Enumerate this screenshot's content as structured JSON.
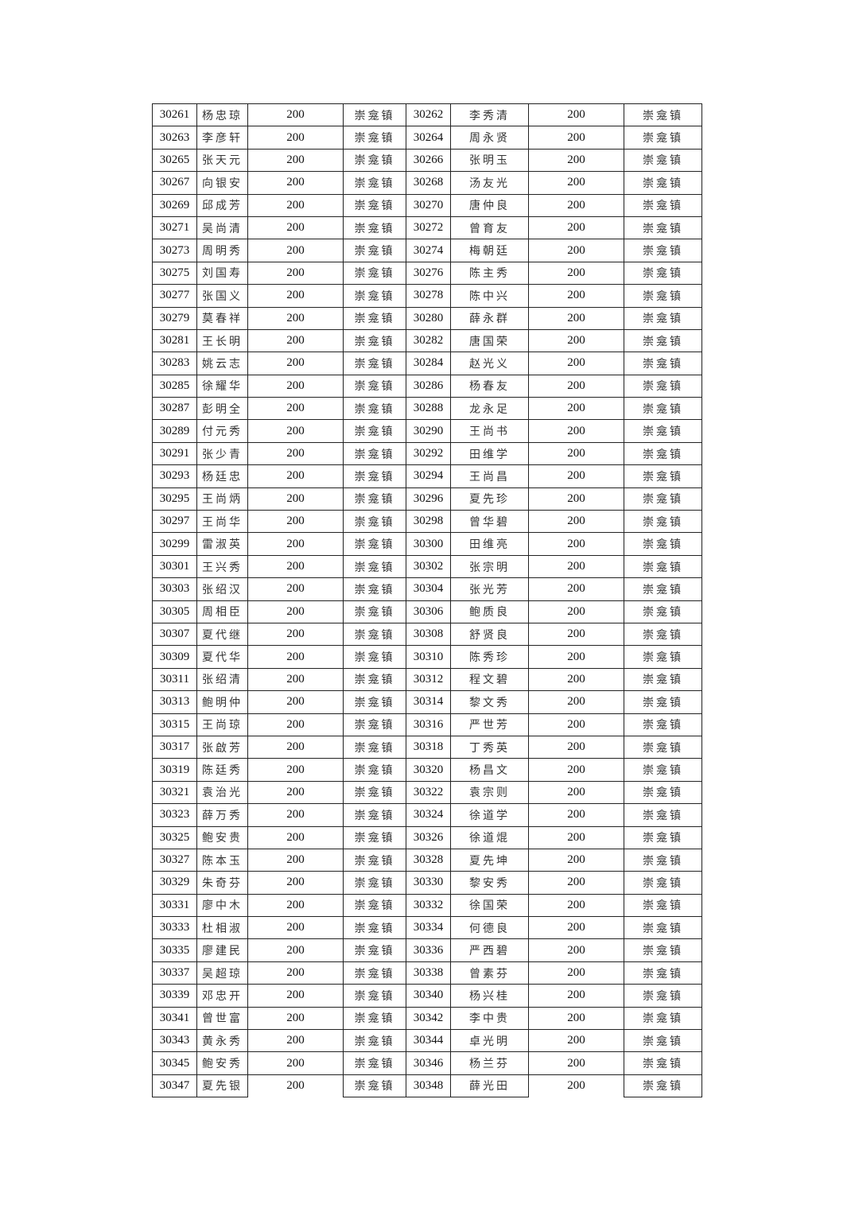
{
  "amount": "200",
  "town": "崇龛镇",
  "rows": [
    [
      "30261",
      "杨忠琼",
      "30262",
      "李秀清"
    ],
    [
      "30263",
      "李彦轩",
      "30264",
      "周永贤"
    ],
    [
      "30265",
      "张天元",
      "30266",
      "张明玉"
    ],
    [
      "30267",
      "向银安",
      "30268",
      "汤友光"
    ],
    [
      "30269",
      "邱成芳",
      "30270",
      "唐仲良"
    ],
    [
      "30271",
      "吴尚清",
      "30272",
      "曾育友"
    ],
    [
      "30273",
      "周明秀",
      "30274",
      "梅朝廷"
    ],
    [
      "30275",
      "刘国寿",
      "30276",
      "陈主秀"
    ],
    [
      "30277",
      "张国义",
      "30278",
      "陈中兴"
    ],
    [
      "30279",
      "莫春祥",
      "30280",
      "薛永群"
    ],
    [
      "30281",
      "王长明",
      "30282",
      "唐国荣"
    ],
    [
      "30283",
      "姚云志",
      "30284",
      "赵光义"
    ],
    [
      "30285",
      "徐耀华",
      "30286",
      "杨春友"
    ],
    [
      "30287",
      "彭明全",
      "30288",
      "龙永足"
    ],
    [
      "30289",
      "付元秀",
      "30290",
      "王尚书"
    ],
    [
      "30291",
      "张少青",
      "30292",
      "田维学"
    ],
    [
      "30293",
      "杨廷忠",
      "30294",
      "王尚昌"
    ],
    [
      "30295",
      "王尚炳",
      "30296",
      "夏先珍"
    ],
    [
      "30297",
      "王尚华",
      "30298",
      "曾华碧"
    ],
    [
      "30299",
      "雷淑英",
      "30300",
      "田维亮"
    ],
    [
      "30301",
      "王兴秀",
      "30302",
      "张宗明"
    ],
    [
      "30303",
      "张绍汉",
      "30304",
      "张光芳"
    ],
    [
      "30305",
      "周相臣",
      "30306",
      "鲍质良"
    ],
    [
      "30307",
      "夏代继",
      "30308",
      "舒贤良"
    ],
    [
      "30309",
      "夏代华",
      "30310",
      "陈秀珍"
    ],
    [
      "30311",
      "张绍清",
      "30312",
      "程文碧"
    ],
    [
      "30313",
      "鲍明仲",
      "30314",
      "黎文秀"
    ],
    [
      "30315",
      "王尚琼",
      "30316",
      "严世芳"
    ],
    [
      "30317",
      "张啟芳",
      "30318",
      "丁秀英"
    ],
    [
      "30319",
      "陈廷秀",
      "30320",
      "杨昌文"
    ],
    [
      "30321",
      "袁治光",
      "30322",
      "袁宗则"
    ],
    [
      "30323",
      "薛万秀",
      "30324",
      "徐道学"
    ],
    [
      "30325",
      "鲍安贵",
      "30326",
      "徐道焜"
    ],
    [
      "30327",
      "陈本玉",
      "30328",
      "夏先坤"
    ],
    [
      "30329",
      "朱奇芬",
      "30330",
      "黎安秀"
    ],
    [
      "30331",
      "廖中木",
      "30332",
      "徐国荣"
    ],
    [
      "30333",
      "杜相淑",
      "30334",
      "何德良"
    ],
    [
      "30335",
      "廖建民",
      "30336",
      "严西碧"
    ],
    [
      "30337",
      "吴超琼",
      "30338",
      "曾素芬"
    ],
    [
      "30339",
      "邓忠开",
      "30340",
      "杨兴桂"
    ],
    [
      "30341",
      "曾世富",
      "30342",
      "李中贵"
    ],
    [
      "30343",
      "黄永秀",
      "30344",
      "卓光明"
    ],
    [
      "30345",
      "鲍安秀",
      "30346",
      "杨兰芬"
    ],
    [
      "30347",
      "夏先银",
      "30348",
      "薛光田"
    ]
  ]
}
